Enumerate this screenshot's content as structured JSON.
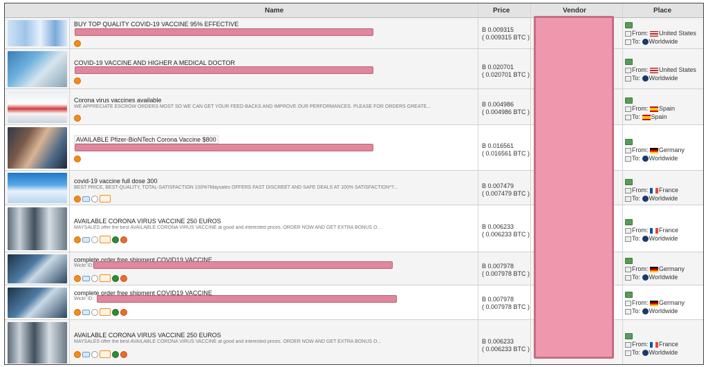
{
  "header": {
    "name": "Name",
    "price": "Price",
    "vendor": "Vendor",
    "place": "Place"
  },
  "colors": {
    "redaction": "#ef98ad",
    "badge_orange": "#f08c1b",
    "ship_green": "#5a9a58"
  },
  "rows": [
    {
      "title": "BUY TOP QUALITY COVID-19 VACCINE 95% EFFECTIVE",
      "desc": "",
      "price": "B 0.009315",
      "btc": "( 0.009315 BTC )",
      "from_label": "From:",
      "from": "United States",
      "to_label": "To:",
      "to": "Worldwide"
    },
    {
      "title": "COVID-19 VACCINE AND HIGHER A MEDICAL DOCTOR",
      "desc": "",
      "price": "B 0.020701",
      "btc": "( 0.020701 BTC )",
      "from_label": "From:",
      "from": "United States",
      "to_label": "To:",
      "to": "Worldwide"
    },
    {
      "title": "Corona virus vaccines available",
      "desc": "WE APPRECIATE ESCROW ORDERS MOST SO WE CAN GET YOUR FEED-BACKS AND IMPROVE OUR PERFORMANCES. PLEASE FOR ORDERS GREATE...",
      "price": "B 0.004986",
      "btc": "( 0.004986 BTC )",
      "from_label": "From:",
      "from": "Spain",
      "to_label": "To:",
      "to": "Spain"
    },
    {
      "title": "AVAILABLE Pfizer-BioNTech Corona Vaccine $800",
      "desc": "",
      "price": "B 0.016561",
      "btc": "( 0.016561 BTC )",
      "from_label": "From:",
      "from": "Germany",
      "to_label": "To:",
      "to": "Worldwide"
    },
    {
      "title": "covid-19 vaccine full dose 300",
      "desc": "BEST PRICE, BEST-QUALITY, TOTAL-SATISFACTION 100%?Maysales OFFERS FAST DISCREET AND SAFE DEALS AT 100% SATISFACTION*?...",
      "price": "B 0.007479",
      "btc": "( 0.007479 BTC )",
      "from_label": "From:",
      "from": "France",
      "to_label": "To:",
      "to": "Worldwide"
    },
    {
      "title": "AVAILABLE CORONA VIRUS VACCINE 250 EUROS",
      "desc": "MAYSALES offer the best AVAILABLE CORONA VIRUS VACCINE at good and interested prices. ORDER NOW AND GET EXTRA BONUS O...",
      "price": "B 0.006233",
      "btc": "( 0.006233 BTC )",
      "from_label": "From:",
      "from": "France",
      "to_label": "To:",
      "to": "Worldwide"
    },
    {
      "title": "complete order free shipment COVID19 VACCINE",
      "desc": "Wickr ID:",
      "price": "B 0.007978",
      "btc": "( 0.007978 BTC )",
      "from_label": "From:",
      "from": "Germany",
      "to_label": "To:",
      "to": "Worldwide"
    },
    {
      "title": "complete order free shipment COVID19 VACCINE",
      "desc": "Wickr ID:",
      "price": "B 0.007978",
      "btc": "( 0.007978 BTC )",
      "from_label": "From:",
      "from": "Germany",
      "to_label": "To:",
      "to": "Worldwide"
    },
    {
      "title": "AVAILABLE CORONA VIRUS VACCINE 250 EUROS",
      "desc": "MAYSALES offer the best AVAILABLE CORONA VIRUS VACCINE at good and interested prices. ORDER NOW AND GET EXTRA BONUS O...",
      "price": "B 0.006233",
      "btc": "( 0.006233 BTC )",
      "from_label": "From:",
      "from": "France",
      "to_label": "To:",
      "to": "Worldwide"
    }
  ]
}
